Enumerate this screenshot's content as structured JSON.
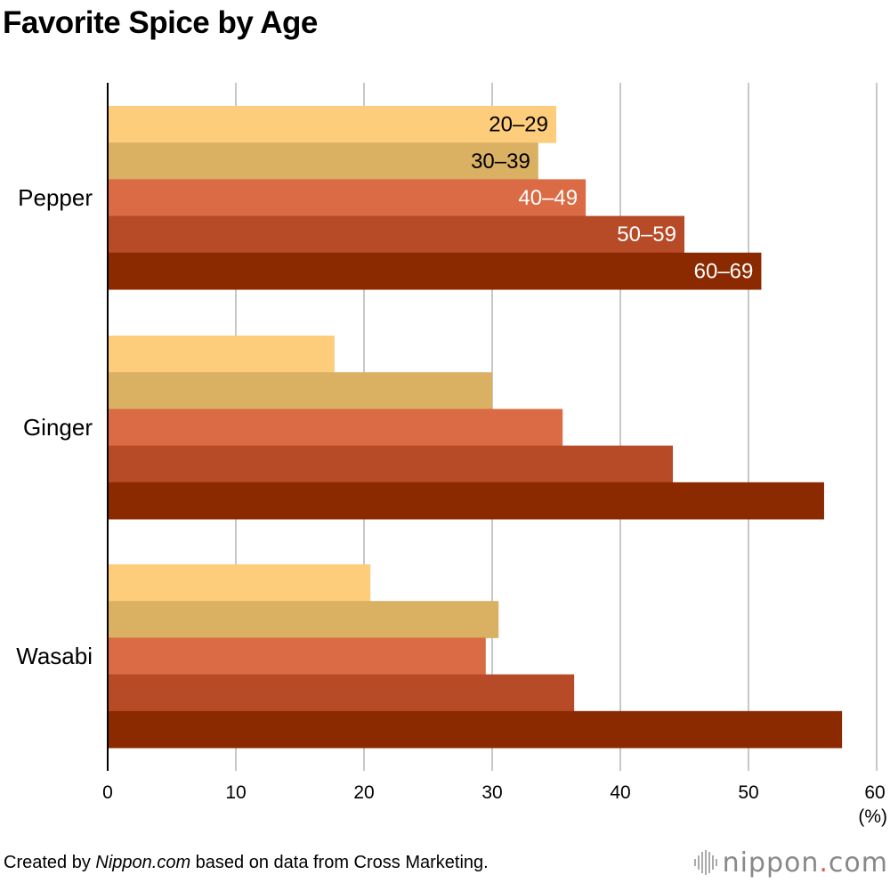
{
  "title": "Favorite Spice by Age",
  "footer": {
    "prefix": "Created by ",
    "site": "Nippon.com",
    "suffix": " based on data from Cross Marketing."
  },
  "logo": {
    "name": "nippon",
    "dot": ".",
    "tld": "com"
  },
  "chart_data": {
    "type": "bar",
    "orientation": "horizontal",
    "title": "Favorite Spice by Age",
    "categories": [
      "Pepper",
      "Ginger",
      "Wasabi"
    ],
    "series": [
      {
        "name": "20–29",
        "color": "#fecd7c",
        "label_color": "#000000",
        "values": [
          35.0,
          17.7,
          20.5
        ]
      },
      {
        "name": "30–39",
        "color": "#dab063",
        "label_color": "#000000",
        "values": [
          33.6,
          30.0,
          30.5
        ]
      },
      {
        "name": "40–49",
        "color": "#da6b45",
        "label_color": "#ffffff",
        "values": [
          37.3,
          35.5,
          29.5
        ]
      },
      {
        "name": "50–59",
        "color": "#b74b27",
        "label_color": "#ffffff",
        "values": [
          45.0,
          44.1,
          36.4
        ]
      },
      {
        "name": "60–69",
        "color": "#8b2901",
        "label_color": "#ffffff",
        "values": [
          51.0,
          55.9,
          57.3
        ]
      }
    ],
    "xlim": [
      0,
      60
    ],
    "xticks": [
      0,
      10,
      20,
      30,
      40,
      50,
      60
    ],
    "unit": "(%)",
    "grid": true,
    "legend": "inline labels on first category bars"
  }
}
